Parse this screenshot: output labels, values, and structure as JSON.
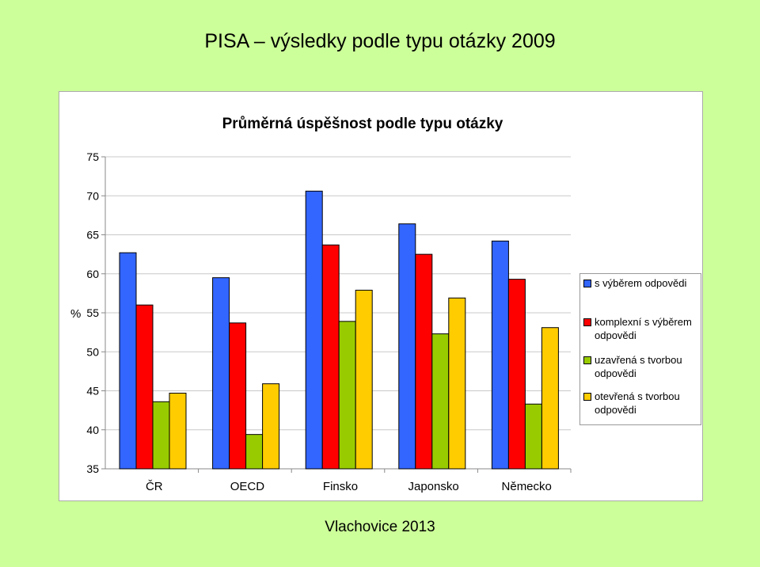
{
  "slide_title": "PISA – výsledky podle typu otázky 2009",
  "footer": "Vlachovice 2013",
  "chart_data": {
    "type": "bar",
    "title": "Průměrná úspěšnost podle typu otázky",
    "xlabel": "",
    "ylabel": "%",
    "ylim": [
      35,
      75
    ],
    "ytick_step": 5,
    "grid": true,
    "legend_position": "right",
    "categories": [
      "ČR",
      "OECD",
      "Finsko",
      "Japonsko",
      "Německo"
    ],
    "series": [
      {
        "name": "s výběrem odpovědi",
        "color": "#3366ff",
        "values": [
          62.7,
          59.5,
          70.6,
          66.4,
          64.2
        ]
      },
      {
        "name": "komplexní s výběrem odpovědi",
        "color": "#ff0000",
        "values": [
          56.0,
          53.7,
          63.7,
          62.5,
          59.3
        ]
      },
      {
        "name": "uzavřená s tvorbou odpovědi",
        "color": "#99cc00",
        "values": [
          43.6,
          39.4,
          53.9,
          52.3,
          43.3
        ]
      },
      {
        "name": "otevřená s tvorbou odpovědi",
        "color": "#ffcc00",
        "values": [
          44.7,
          45.9,
          57.9,
          56.9,
          53.1
        ]
      }
    ]
  }
}
